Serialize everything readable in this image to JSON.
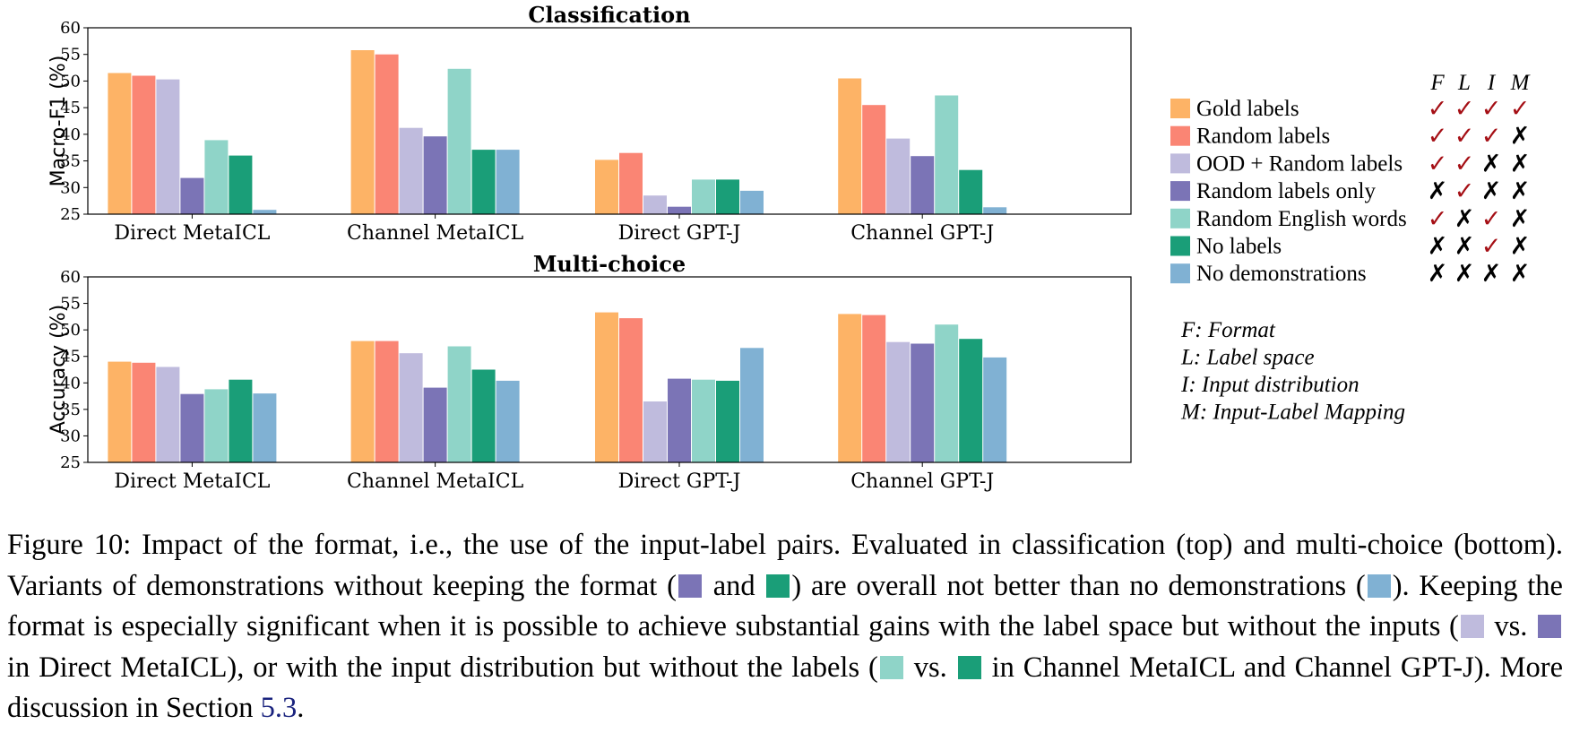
{
  "colors": {
    "gold": "#fdb366",
    "random": "#fa8574",
    "ood_random": "#bfbbdd",
    "random_only": "#7b74b6",
    "random_english": "#8fd4c8",
    "no_labels": "#1a9e78",
    "no_demos": "#80b1d3",
    "check": "#a50f15",
    "cross": "#000000"
  },
  "chart_data": [
    {
      "type": "bar",
      "title": "Classification",
      "ylabel": "Macro-F1 (%)",
      "ylim": [
        25,
        60
      ],
      "yticks": [
        25,
        30,
        35,
        40,
        45,
        50,
        55,
        60
      ],
      "categories": [
        "Direct MetaICL",
        "Channel MetaICL",
        "Direct GPT-J",
        "Channel GPT-J"
      ],
      "series": [
        {
          "name": "Gold labels",
          "values": [
            51.5,
            55.8,
            35.2,
            50.5
          ]
        },
        {
          "name": "Random labels",
          "values": [
            51.0,
            55.0,
            36.5,
            45.5
          ]
        },
        {
          "name": "OOD + Random labels",
          "values": [
            50.3,
            41.2,
            28.5,
            39.2
          ]
        },
        {
          "name": "Random labels only",
          "values": [
            31.8,
            39.6,
            26.4,
            35.9
          ]
        },
        {
          "name": "Random English words",
          "values": [
            38.9,
            52.3,
            31.5,
            47.3
          ]
        },
        {
          "name": "No labels",
          "values": [
            36.0,
            37.1,
            31.5,
            33.3
          ]
        },
        {
          "name": "No demonstrations",
          "values": [
            25.8,
            37.1,
            29.4,
            26.3
          ]
        }
      ]
    },
    {
      "type": "bar",
      "title": "Multi-choice",
      "ylabel": "Accuracy (%)",
      "ylim": [
        25,
        60
      ],
      "yticks": [
        25,
        30,
        35,
        40,
        45,
        50,
        55,
        60
      ],
      "categories": [
        "Direct MetaICL",
        "Channel MetaICL",
        "Direct GPT-J",
        "Channel GPT-J"
      ],
      "series": [
        {
          "name": "Gold labels",
          "values": [
            44.0,
            47.9,
            53.3,
            53.0
          ]
        },
        {
          "name": "Random labels",
          "values": [
            43.8,
            47.9,
            52.2,
            52.8
          ]
        },
        {
          "name": "OOD + Random labels",
          "values": [
            43.0,
            45.6,
            36.5,
            47.7
          ]
        },
        {
          "name": "Random labels only",
          "values": [
            37.9,
            39.1,
            40.8,
            47.4
          ]
        },
        {
          "name": "Random English words",
          "values": [
            38.8,
            46.9,
            40.6,
            51.0
          ]
        },
        {
          "name": "No labels",
          "values": [
            40.6,
            42.5,
            40.4,
            48.3
          ]
        },
        {
          "name": "No demonstrations",
          "values": [
            38.0,
            40.4,
            46.6,
            44.8
          ]
        }
      ]
    }
  ],
  "legend": {
    "headers": [
      "F",
      "L",
      "I",
      "M"
    ],
    "items": [
      {
        "label": "Gold labels",
        "color_key": "gold",
        "marks": [
          true,
          true,
          true,
          true
        ]
      },
      {
        "label": "Random labels",
        "color_key": "random",
        "marks": [
          true,
          true,
          true,
          false
        ]
      },
      {
        "label": "OOD + Random labels",
        "color_key": "ood_random",
        "marks": [
          true,
          true,
          false,
          false
        ]
      },
      {
        "label": "Random labels only",
        "color_key": "random_only",
        "marks": [
          false,
          true,
          false,
          false
        ]
      },
      {
        "label": "Random English words",
        "color_key": "random_english",
        "marks": [
          true,
          false,
          true,
          false
        ]
      },
      {
        "label": "No labels",
        "color_key": "no_labels",
        "marks": [
          false,
          false,
          true,
          false
        ]
      },
      {
        "label": "No demonstrations",
        "color_key": "no_demos",
        "marks": [
          false,
          false,
          false,
          false
        ]
      }
    ],
    "check_glyph": "✓",
    "cross_glyph": "✗",
    "definitions": [
      "F: Format",
      "L: Label space",
      "I: Input distribution",
      "M: Input-Label Mapping"
    ]
  },
  "caption": {
    "p1": "Figure 10: Impact of the format, i.e., the use of the input-label pairs. Evaluated in classification (top) and multi-choice (bottom). Variants of demonstrations without keeping the format (",
    "p2": " and ",
    "p3": ") are overall not better than no demonstrations (",
    "p4": "). Keeping the format is especially significant when it is possible to achieve substantial gains with the label space but without the inputs (",
    "p5": " vs. ",
    "p6": " in Direct MetaICL), or with the input distribution but without the labels (",
    "p7": " vs. ",
    "p8": " in Channel MetaICL and Channel GPT-J). More discussion in Section ",
    "ref": "5.3",
    "p9": "."
  }
}
